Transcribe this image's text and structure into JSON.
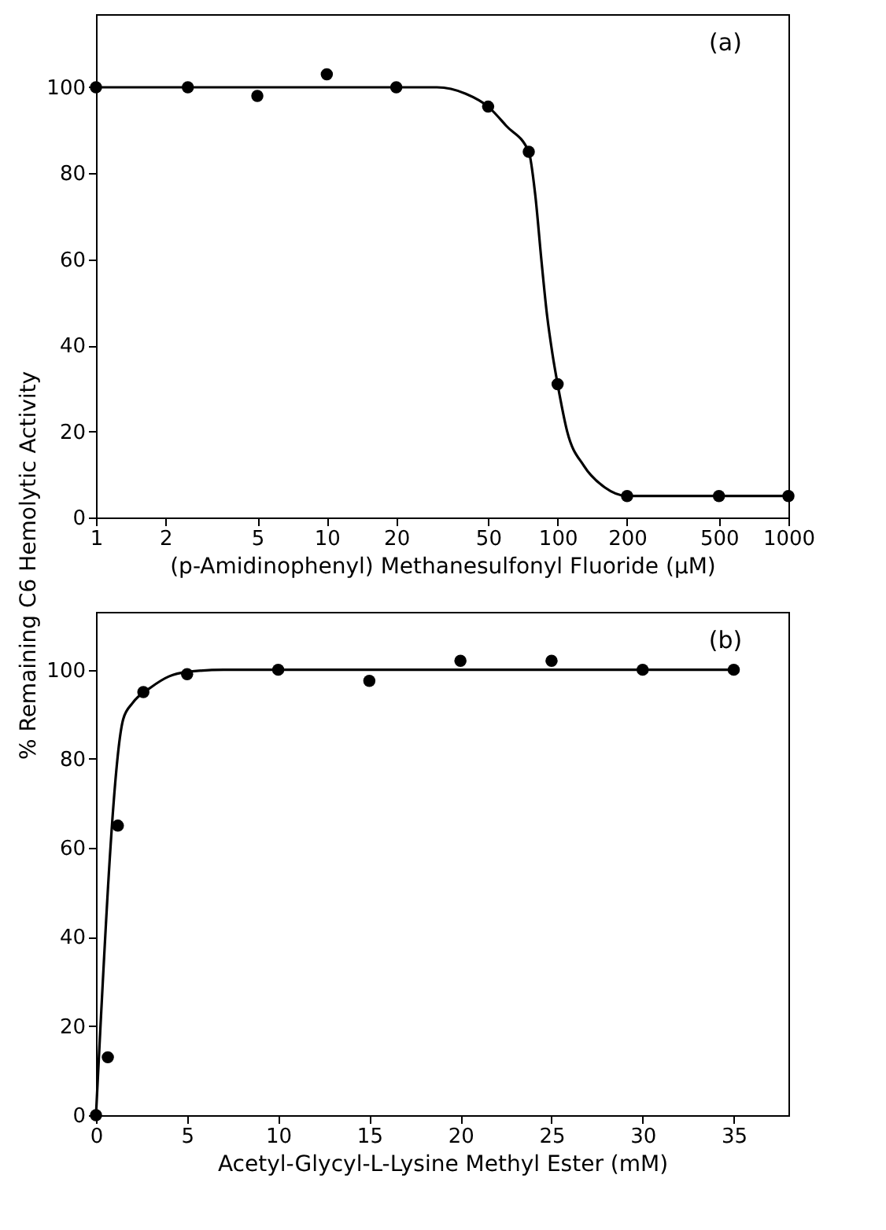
{
  "chart_data": [
    {
      "type": "scatter",
      "xlabel": "(p-Amidinophenyl) Methanesulfonyl Fluoride (μM)",
      "ylabel": "% Remaining C6 Hemolytic Activity",
      "log": "x",
      "annotations": [
        "(a)"
      ],
      "xlim": [
        1,
        1000
      ],
      "xticks": [
        1,
        2,
        5,
        10,
        20,
        50,
        100,
        200,
        500,
        {
          "value": 1000,
          "label": "1000"
        }
      ],
      "ylim": [
        0,
        117
      ],
      "yticks": [
        0,
        20,
        40,
        60,
        80,
        100
      ],
      "x": [
        1,
        2.5,
        5,
        10,
        20,
        50,
        75,
        100,
        200,
        500,
        1000
      ],
      "series": [
        {
          "color": "#000000",
          "marker": "circle",
          "values": [
            100,
            100,
            98,
            103,
            100,
            95.5,
            85,
            31,
            5,
            5,
            5
          ]
        },
        {
          "type": "line",
          "marker": "none",
          "color": "#000000",
          "x": [
            1,
            30,
            40,
            50,
            60,
            75,
            80,
            85,
            90,
            95,
            100,
            110,
            130,
            160,
            200,
            1000
          ],
          "values": [
            100,
            100,
            98.5,
            95.5,
            91,
            85,
            75,
            60,
            47,
            38,
            31,
            20,
            12,
            7,
            5,
            5
          ]
        }
      ]
    },
    {
      "type": "scatter",
      "xlabel": "Acetyl-Glycyl-L-Lysine Methyl Ester (mM)",
      "annotations": [
        "(b)"
      ],
      "xlim": [
        0,
        38
      ],
      "xticks": [
        0,
        5,
        10,
        15,
        20,
        25,
        30,
        35
      ],
      "ylim": [
        0,
        113
      ],
      "yticks": [
        0,
        20,
        40,
        60,
        80,
        100
      ],
      "x": [
        0,
        0.65,
        1.2,
        2.6,
        5,
        10,
        15,
        20,
        25,
        30,
        35
      ],
      "series": [
        {
          "color": "#000000",
          "marker": "circle",
          "values": [
            0,
            13,
            65,
            95,
            99,
            100,
            97.5,
            102,
            102,
            100,
            100
          ]
        },
        {
          "type": "line",
          "marker": "none",
          "color": "#000000",
          "x": [
            0,
            1.5,
            2,
            3,
            4,
            5,
            7,
            35
          ],
          "values": [
            0,
            89,
            92.5,
            96,
            98.5,
            99.5,
            100,
            100
          ]
        }
      ]
    }
  ]
}
